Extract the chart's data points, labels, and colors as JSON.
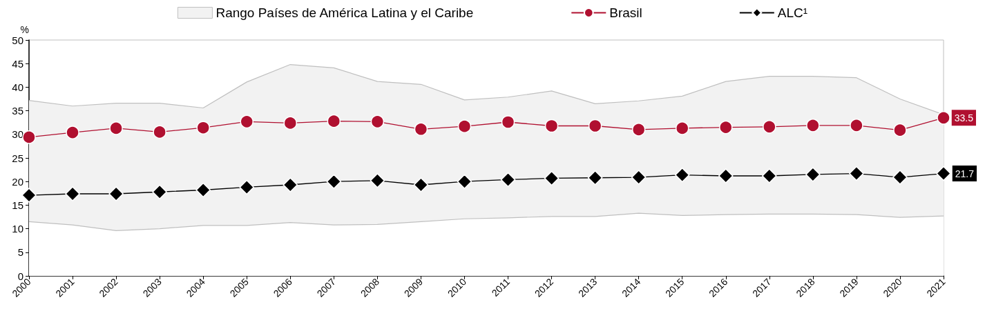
{
  "chart_data": {
    "type": "line",
    "ylabel": "%",
    "categories": [
      "2000",
      "2001",
      "2002",
      "2003",
      "2004",
      "2005",
      "2006",
      "2007",
      "2008",
      "2009",
      "2010",
      "2011",
      "2012",
      "2013",
      "2014",
      "2015",
      "2016",
      "2017",
      "2018",
      "2019",
      "2020",
      "2021"
    ],
    "series": [
      {
        "type": "area",
        "color": "#ffffff",
        "values": [
          11.5,
          10.8,
          9.6,
          10.0,
          10.7,
          10.7,
          11.3,
          10.8,
          10.9,
          11.5,
          12.1,
          12.3,
          12.6,
          12.6,
          13.3,
          12.8,
          13.0,
          13.1,
          13.1,
          13.0,
          12.4,
          12.7
        ]
      },
      {
        "name": "Rango Países de América Latina y el Caribe",
        "type": "area",
        "color": "#f2f2f2",
        "values": [
          37.2,
          36.0,
          36.6,
          36.6,
          35.6,
          41.1,
          44.8,
          44.1,
          41.2,
          40.6,
          37.3,
          37.9,
          39.2,
          36.5,
          37.1,
          38.1,
          41.2,
          42.3,
          42.3,
          42.0,
          37.5,
          34.2
        ]
      },
      {
        "name": "Brasil",
        "color": "#b01030",
        "marker": "circle",
        "values": [
          29.4,
          30.4,
          31.3,
          30.5,
          31.4,
          32.7,
          32.4,
          32.8,
          32.7,
          31.1,
          31.7,
          32.6,
          31.8,
          31.8,
          31.0,
          31.3,
          31.5,
          31.6,
          31.9,
          31.9,
          30.9,
          33.5
        ],
        "value_labels": [
          null,
          null,
          null,
          null,
          null,
          null,
          null,
          null,
          null,
          null,
          null,
          null,
          null,
          null,
          null,
          null,
          null,
          null,
          null,
          null,
          null,
          "33.5"
        ]
      },
      {
        "name": "ALC¹",
        "color": "#000000",
        "marker": "diamond",
        "values": [
          17.1,
          17.4,
          17.4,
          17.8,
          18.2,
          18.8,
          19.3,
          20.0,
          20.2,
          19.3,
          20.0,
          20.4,
          20.7,
          20.8,
          20.9,
          21.4,
          21.2,
          21.2,
          21.5,
          21.7,
          20.9,
          21.7
        ],
        "value_labels": [
          null,
          null,
          null,
          null,
          null,
          null,
          null,
          null,
          null,
          null,
          null,
          null,
          null,
          null,
          null,
          null,
          null,
          null,
          null,
          null,
          null,
          "21.7"
        ]
      }
    ],
    "ylim": [
      0,
      50
    ],
    "yticks": [
      0,
      5,
      10,
      15,
      20,
      25,
      30,
      35,
      40,
      45,
      50
    ],
    "grid": false,
    "legend": "top",
    "line_style": "solid"
  }
}
